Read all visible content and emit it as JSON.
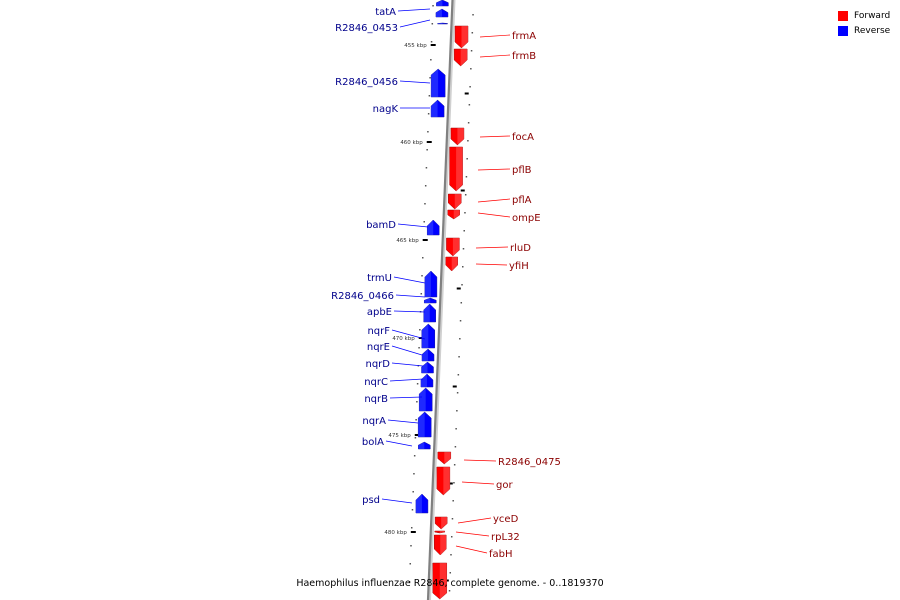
{
  "caption": "Haemophilus influenzae R2846, complete genome. - 0..1819370",
  "legend": [
    {
      "label": "Forward",
      "color": "#ff0000"
    },
    {
      "label": "Reverse",
      "color": "#0000ff"
    }
  ],
  "colors": {
    "forward": "#ff0000",
    "reverse": "#0000ff",
    "label": "#00008b",
    "forward_label": "#8b0000",
    "backbone": "#808080"
  },
  "scale_labels": [
    "455 kbp",
    "460 kbp",
    "465 kbp",
    "470 kbp",
    "475 kbp",
    "480 kbp"
  ],
  "reverse_genes": [
    "tatA",
    "R2846_0453",
    "R2846_0456",
    "nagK",
    "bamD",
    "trmU",
    "R2846_0466",
    "apbE",
    "nqrF",
    "nqrE",
    "nqrD",
    "nqrC",
    "nqrB",
    "nqrA",
    "bolA",
    "psd"
  ],
  "forward_genes": [
    "frmA",
    "frmB",
    "focA",
    "pflB",
    "pflA",
    "ompE",
    "rluD",
    "yfiH",
    "R2846_0475",
    "gor",
    "yceD",
    "rpL32",
    "fabH"
  ]
}
